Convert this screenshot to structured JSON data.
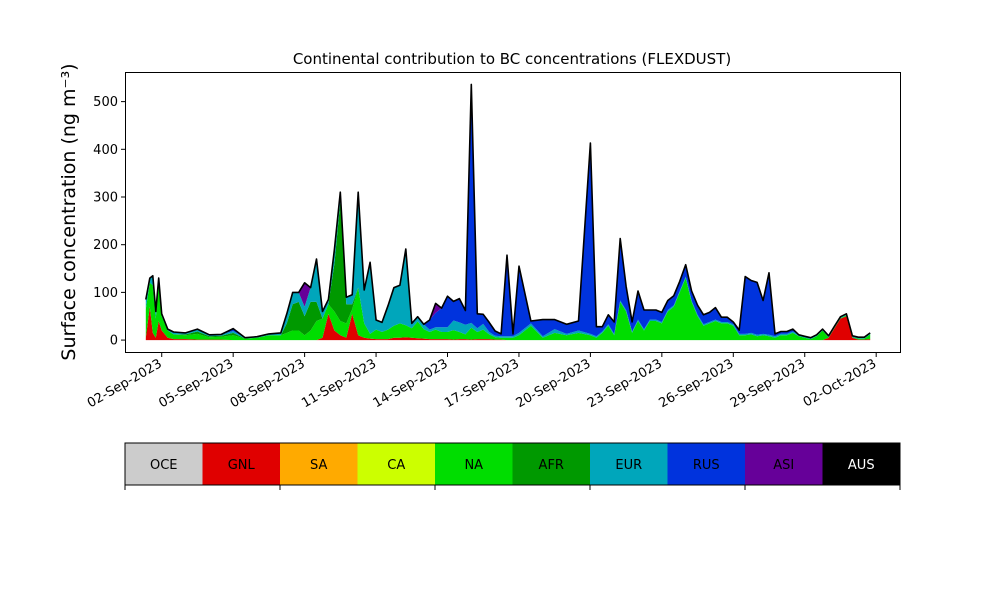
{
  "chart_data": {
    "type": "area",
    "stacked": true,
    "title": "Continental contribution to BC concentrations (FLEXDUST)",
    "xlabel": "",
    "ylabel": "Surface concentration (ng m⁻³)",
    "ylim": [
      -25,
      560
    ],
    "yticks": [
      0,
      100,
      200,
      300,
      400,
      500
    ],
    "xlim": [
      "2023-08-31T12:00",
      "2023-10-03T00:00"
    ],
    "xticks": [
      "2023-09-02",
      "2023-09-05",
      "2023-09-08",
      "2023-09-11",
      "2023-09-14",
      "2023-09-17",
      "2023-09-20",
      "2023-09-23",
      "2023-09-26",
      "2023-09-29",
      "2023-10-02"
    ],
    "xtick_labels": [
      "02-Sep-2023",
      "05-Sep-2023",
      "08-Sep-2023",
      "11-Sep-2023",
      "14-Sep-2023",
      "17-Sep-2023",
      "20-Sep-2023",
      "23-Sep-2023",
      "26-Sep-2023",
      "29-Sep-2023",
      "02-Oct-2023"
    ],
    "grid": false,
    "legend": "colorbar-below",
    "categories": [
      "OCE",
      "GNL",
      "SA",
      "CA",
      "NA",
      "AFR",
      "EUR",
      "RUS",
      "ASI",
      "AUS"
    ],
    "colors": [
      "#cccccc",
      "#e00000",
      "#ffaa00",
      "#ccff00",
      "#00dd00",
      "#009900",
      "#00a6bb",
      "#0033dd",
      "#660099",
      "#000000"
    ],
    "x": [
      "2023-09-01T08:00",
      "2023-09-01T12:00",
      "2023-09-01T15:00",
      "2023-09-01T18:00",
      "2023-09-01T21:00",
      "2023-09-02T00:00",
      "2023-09-02T06:00",
      "2023-09-02T12:00",
      "2023-09-03T00:00",
      "2023-09-03T12:00",
      "2023-09-04T00:00",
      "2023-09-04T12:00",
      "2023-09-05T00:00",
      "2023-09-05T12:00",
      "2023-09-06T00:00",
      "2023-09-06T12:00",
      "2023-09-07T00:00",
      "2023-09-07T06:00",
      "2023-09-07T12:00",
      "2023-09-07T18:00",
      "2023-09-08T00:00",
      "2023-09-08T06:00",
      "2023-09-08T12:00",
      "2023-09-08T18:00",
      "2023-09-09T00:00",
      "2023-09-09T06:00",
      "2023-09-09T12:00",
      "2023-09-09T18:00",
      "2023-09-10T00:00",
      "2023-09-10T06:00",
      "2023-09-10T12:00",
      "2023-09-10T18:00",
      "2023-09-11T00:00",
      "2023-09-11T06:00",
      "2023-09-11T12:00",
      "2023-09-11T18:00",
      "2023-09-12T00:00",
      "2023-09-12T06:00",
      "2023-09-12T12:00",
      "2023-09-12T18:00",
      "2023-09-13T00:00",
      "2023-09-13T06:00",
      "2023-09-13T12:00",
      "2023-09-13T18:00",
      "2023-09-14T00:00",
      "2023-09-14T06:00",
      "2023-09-14T12:00",
      "2023-09-14T18:00",
      "2023-09-15T00:00",
      "2023-09-15T06:00",
      "2023-09-15T12:00",
      "2023-09-15T18:00",
      "2023-09-16T00:00",
      "2023-09-16T06:00",
      "2023-09-16T12:00",
      "2023-09-16T18:00",
      "2023-09-17T00:00",
      "2023-09-17T12:00",
      "2023-09-18T00:00",
      "2023-09-18T12:00",
      "2023-09-19T00:00",
      "2023-09-19T12:00",
      "2023-09-20T00:00",
      "2023-09-20T06:00",
      "2023-09-20T12:00",
      "2023-09-20T18:00",
      "2023-09-21T00:00",
      "2023-09-21T06:00",
      "2023-09-21T12:00",
      "2023-09-21T18:00",
      "2023-09-22T00:00",
      "2023-09-22T06:00",
      "2023-09-22T12:00",
      "2023-09-22T18:00",
      "2023-09-23T00:00",
      "2023-09-23T06:00",
      "2023-09-23T12:00",
      "2023-09-23T18:00",
      "2023-09-24T00:00",
      "2023-09-24T06:00",
      "2023-09-24T12:00",
      "2023-09-24T18:00",
      "2023-09-25T00:00",
      "2023-09-25T06:00",
      "2023-09-25T12:00",
      "2023-09-25T18:00",
      "2023-09-26T00:00",
      "2023-09-26T06:00",
      "2023-09-26T12:00",
      "2023-09-26T18:00",
      "2023-09-27T00:00",
      "2023-09-27T06:00",
      "2023-09-27T12:00",
      "2023-09-27T18:00",
      "2023-09-28T00:00",
      "2023-09-28T06:00",
      "2023-09-28T12:00",
      "2023-09-28T18:00",
      "2023-09-29T00:00",
      "2023-09-29T06:00",
      "2023-09-29T12:00",
      "2023-09-29T18:00",
      "2023-09-30T00:00",
      "2023-09-30T06:00",
      "2023-09-30T12:00",
      "2023-09-30T18:00",
      "2023-10-01T00:00",
      "2023-10-01T06:00",
      "2023-10-01T12:00",
      "2023-10-01T18:00"
    ],
    "series": [
      {
        "name": "OCE",
        "values": [
          0,
          0,
          0,
          0,
          0,
          0,
          0,
          0,
          0,
          0,
          0,
          0,
          0,
          0,
          0,
          0,
          0,
          0,
          0,
          0,
          0,
          0,
          0,
          0,
          0,
          0,
          0,
          0,
          0,
          0,
          0,
          0,
          0,
          0,
          0,
          0,
          0,
          0,
          0,
          0,
          0,
          0,
          0,
          0,
          0,
          0,
          0,
          0,
          0,
          0,
          0,
          0,
          0,
          0,
          0,
          0,
          0,
          0,
          0,
          0,
          0,
          0,
          0,
          0,
          0,
          0,
          0,
          0,
          0,
          0,
          0,
          0,
          0,
          0,
          0,
          0,
          0,
          0,
          0,
          0,
          0,
          0,
          0,
          0,
          0,
          0,
          0,
          0,
          0,
          0,
          0,
          0,
          0,
          0,
          0,
          0,
          0,
          0,
          0,
          0,
          0,
          0,
          0,
          0,
          0,
          0,
          0,
          0,
          0,
          0
        ]
      },
      {
        "name": "GNL",
        "values": [
          5,
          70,
          15,
          5,
          40,
          20,
          5,
          2,
          2,
          1,
          1,
          1,
          0,
          0,
          0,
          0,
          0,
          0,
          0,
          0,
          0,
          0,
          0,
          5,
          55,
          20,
          10,
          5,
          55,
          10,
          5,
          3,
          2,
          2,
          2,
          5,
          5,
          6,
          5,
          4,
          3,
          2,
          2,
          2,
          2,
          1,
          2,
          2,
          1,
          2,
          2,
          2,
          1,
          1,
          0,
          0,
          0,
          0,
          0,
          0,
          0,
          0,
          0,
          0,
          0,
          0,
          0,
          0,
          0,
          0,
          0,
          0,
          0,
          0,
          0,
          0,
          0,
          0,
          0,
          0,
          0,
          0,
          0,
          0,
          0,
          0,
          0,
          0,
          0,
          0,
          0,
          0,
          0,
          0,
          0,
          0,
          0,
          0,
          0,
          0,
          0,
          0,
          5,
          25,
          45,
          50,
          5,
          1,
          1,
          2
        ]
      },
      {
        "name": "SA",
        "values": [
          0,
          0,
          0,
          0,
          0,
          0,
          0,
          0,
          0,
          0,
          0,
          0,
          0,
          0,
          0,
          0,
          0,
          0,
          0,
          0,
          0,
          0,
          0,
          0,
          0,
          0,
          0,
          0,
          0,
          0,
          0,
          0,
          0,
          0,
          0,
          0,
          0,
          0,
          0,
          0,
          0,
          0,
          0,
          0,
          0,
          0,
          0,
          0,
          0,
          0,
          0,
          0,
          0,
          0,
          0,
          0,
          0,
          0,
          0,
          0,
          0,
          0,
          0,
          0,
          0,
          0,
          0,
          0,
          0,
          0,
          0,
          0,
          0,
          0,
          0,
          0,
          0,
          0,
          0,
          0,
          0,
          0,
          0,
          0,
          0,
          0,
          0,
          0,
          0,
          0,
          0,
          0,
          0,
          0,
          0,
          0,
          0,
          0,
          0,
          0,
          0,
          0,
          0,
          0,
          0,
          0,
          0,
          0,
          0,
          0
        ]
      },
      {
        "name": "CA",
        "values": [
          0,
          0,
          0,
          0,
          0,
          0,
          0,
          0,
          0,
          0,
          0,
          0,
          0,
          0,
          0,
          0,
          0,
          0,
          0,
          0,
          0,
          0,
          0,
          0,
          0,
          0,
          0,
          0,
          0,
          0,
          0,
          0,
          0,
          0,
          0,
          0,
          0,
          0,
          0,
          0,
          0,
          0,
          0,
          0,
          0,
          0,
          0,
          0,
          0,
          0,
          0,
          0,
          0,
          0,
          0,
          0,
          0,
          0,
          0,
          0,
          0,
          0,
          0,
          0,
          0,
          0,
          0,
          0,
          0,
          0,
          0,
          0,
          0,
          0,
          0,
          0,
          0,
          0,
          0,
          0,
          0,
          0,
          0,
          0,
          0,
          0,
          0,
          0,
          0,
          0,
          0,
          0,
          0,
          0,
          0,
          0,
          0,
          0,
          0,
          0,
          0,
          0,
          0,
          0,
          0,
          0,
          0,
          0,
          0,
          0
        ]
      },
      {
        "name": "NA",
        "values": [
          60,
          50,
          100,
          40,
          80,
          30,
          15,
          10,
          8,
          12,
          5,
          6,
          10,
          3,
          5,
          10,
          10,
          15,
          20,
          20,
          10,
          20,
          40,
          40,
          20,
          40,
          30,
          30,
          10,
          100,
          30,
          10,
          20,
          15,
          20,
          25,
          30,
          25,
          20,
          35,
          20,
          15,
          20,
          15,
          15,
          20,
          15,
          10,
          25,
          15,
          20,
          10,
          5,
          4,
          5,
          5,
          10,
          30,
          5,
          15,
          10,
          15,
          10,
          5,
          15,
          30,
          10,
          80,
          60,
          15,
          40,
          20,
          40,
          40,
          35,
          60,
          70,
          100,
          130,
          80,
          50,
          30,
          35,
          40,
          35,
          35,
          30,
          10,
          10,
          12,
          8,
          10,
          8,
          5,
          10,
          10,
          15,
          8,
          5,
          2,
          8,
          20,
          1,
          1,
          1,
          2,
          1,
          2,
          2,
          10
        ]
      },
      {
        "name": "AFR",
        "values": [
          0,
          0,
          0,
          0,
          0,
          0,
          0,
          0,
          2,
          5,
          2,
          2,
          5,
          0,
          0,
          0,
          0,
          20,
          55,
          60,
          40,
          60,
          40,
          0,
          0,
          100,
          250,
          40,
          10,
          0,
          0,
          0,
          0,
          0,
          0,
          0,
          0,
          0,
          0,
          0,
          0,
          0,
          0,
          0,
          0,
          0,
          0,
          0,
          0,
          0,
          0,
          0,
          0,
          0,
          0,
          0,
          0,
          0,
          0,
          0,
          0,
          0,
          0,
          0,
          0,
          0,
          0,
          0,
          0,
          0,
          0,
          0,
          0,
          0,
          0,
          0,
          0,
          0,
          0,
          0,
          0,
          0,
          0,
          0,
          0,
          0,
          0,
          0,
          0,
          0,
          0,
          0,
          0,
          0,
          0,
          0,
          0,
          0,
          0,
          0,
          0,
          0,
          0,
          0,
          0,
          0,
          0,
          0,
          0,
          0
        ]
      },
      {
        "name": "EUR",
        "values": [
          20,
          10,
          20,
          15,
          10,
          5,
          3,
          5,
          3,
          5,
          3,
          3,
          4,
          2,
          2,
          3,
          5,
          20,
          25,
          20,
          20,
          30,
          90,
          15,
          10,
          30,
          20,
          15,
          20,
          200,
          70,
          150,
          20,
          20,
          50,
          80,
          80,
          160,
          10,
          10,
          10,
          5,
          5,
          10,
          10,
          20,
          20,
          20,
          10,
          8,
          12,
          5,
          3,
          3,
          3,
          3,
          5,
          5,
          3,
          8,
          3,
          5,
          3,
          3,
          3,
          3,
          3,
          3,
          3,
          3,
          3,
          3,
          3,
          3,
          3,
          3,
          3,
          3,
          3,
          3,
          3,
          3,
          3,
          3,
          3,
          3,
          3,
          3,
          3,
          3,
          3,
          3,
          3,
          3,
          3,
          3,
          3,
          3,
          3,
          3,
          3,
          3,
          3,
          3,
          3,
          3,
          3,
          3,
          3,
          3
        ]
      },
      {
        "name": "RUS",
        "values": [
          0,
          0,
          0,
          0,
          0,
          0,
          0,
          0,
          0,
          0,
          0,
          0,
          5,
          0,
          0,
          0,
          0,
          0,
          0,
          0,
          0,
          0,
          0,
          0,
          0,
          0,
          0,
          0,
          0,
          0,
          0,
          0,
          0,
          0,
          0,
          0,
          0,
          0,
          0,
          0,
          0,
          20,
          30,
          40,
          65,
          40,
          50,
          30,
          500,
          30,
          20,
          20,
          10,
          5,
          170,
          5,
          140,
          5,
          35,
          20,
          20,
          20,
          400,
          20,
          10,
          20,
          25,
          130,
          50,
          20,
          60,
          40,
          20,
          20,
          20,
          20,
          20,
          20,
          25,
          20,
          20,
          20,
          20,
          25,
          10,
          10,
          5,
          8,
          120,
          110,
          110,
          70,
          130,
          5,
          5,
          5,
          5,
          0,
          0,
          0,
          0,
          0,
          0,
          0,
          0,
          0,
          0,
          0,
          0,
          0
        ]
      },
      {
        "name": "ASI",
        "values": [
          0,
          0,
          0,
          0,
          0,
          0,
          0,
          0,
          0,
          0,
          0,
          0,
          0,
          0,
          0,
          0,
          0,
          0,
          0,
          0,
          50,
          0,
          0,
          0,
          0,
          0,
          0,
          0,
          0,
          0,
          0,
          0,
          0,
          0,
          0,
          0,
          0,
          0,
          0,
          0,
          0,
          0,
          20,
          0,
          0,
          0,
          0,
          0,
          0,
          0,
          0,
          0,
          0,
          0,
          0,
          0,
          0,
          0,
          0,
          0,
          0,
          0,
          0,
          0,
          0,
          0,
          0,
          0,
          0,
          0,
          0,
          0,
          0,
          0,
          0,
          0,
          0,
          0,
          0,
          0,
          0,
          0,
          0,
          0,
          0,
          0,
          0,
          0,
          0,
          0,
          0,
          0,
          0,
          0,
          0,
          0,
          0,
          0,
          0,
          0,
          0,
          0,
          0,
          0,
          0,
          0,
          0,
          0,
          0,
          0
        ]
      },
      {
        "name": "AUS",
        "values": [
          0,
          0,
          0,
          0,
          0,
          0,
          0,
          0,
          0,
          0,
          0,
          0,
          0,
          0,
          0,
          0,
          0,
          0,
          0,
          0,
          0,
          0,
          0,
          0,
          0,
          0,
          0,
          0,
          0,
          0,
          0,
          0,
          0,
          0,
          0,
          0,
          0,
          0,
          0,
          0,
          0,
          0,
          0,
          0,
          0,
          0,
          0,
          0,
          0,
          0,
          0,
          0,
          0,
          0,
          0,
          0,
          0,
          0,
          0,
          0,
          0,
          0,
          0,
          0,
          0,
          0,
          0,
          0,
          0,
          0,
          0,
          0,
          0,
          0,
          0,
          0,
          0,
          0,
          0,
          0,
          0,
          0,
          0,
          0,
          0,
          0,
          0,
          0,
          0,
          0,
          0,
          0,
          0,
          0,
          0,
          0,
          0,
          0,
          0,
          0,
          0,
          0,
          0,
          0,
          0,
          0,
          0,
          0,
          0,
          0
        ]
      }
    ]
  }
}
